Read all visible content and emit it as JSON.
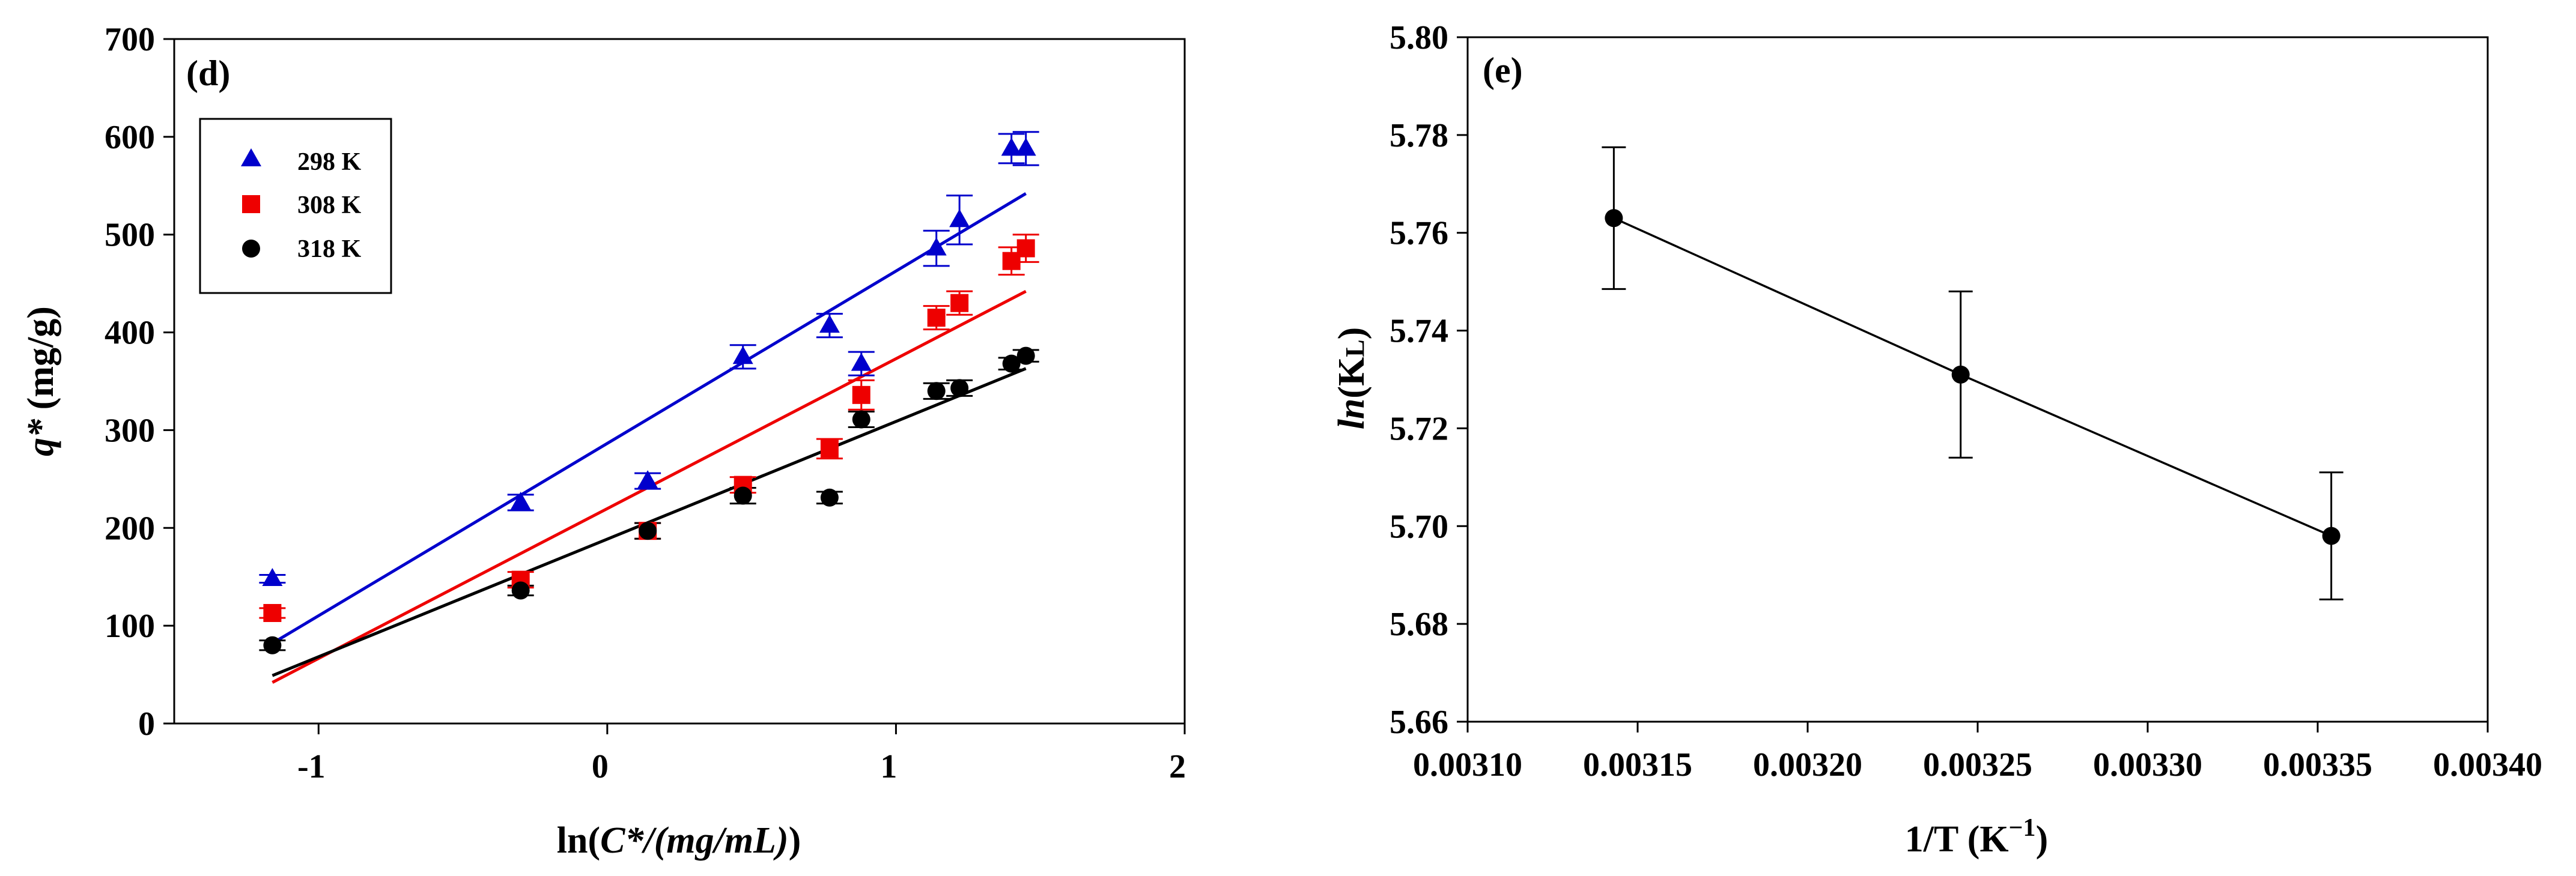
{
  "chart_data": [
    {
      "panel_label": "(d)",
      "type": "scatter",
      "xlabel_prefix": "ln(",
      "xlabel_italic": "C*/(mg/mL)",
      "xlabel_suffix": ")",
      "ylabel_italic": "q*",
      "ylabel_suffix": " (mg/g)",
      "xlim": [
        -1.5,
        2
      ],
      "ylim": [
        0,
        700
      ],
      "xticks": [
        -1,
        0,
        1,
        2
      ],
      "xtick_labels": [
        "-1",
        "0",
        "1",
        "2"
      ],
      "yticks": [
        0,
        100,
        200,
        300,
        400,
        500,
        600,
        700
      ],
      "ytick_labels": [
        "0",
        "100",
        "200",
        "300",
        "400",
        "500",
        "600",
        "700"
      ],
      "legend_position": "top-left",
      "series": [
        {
          "name": "298 K",
          "marker": "triangle",
          "color": "#0000cc",
          "x": [
            -1.16,
            -0.3,
            0.14,
            0.47,
            0.77,
            0.88,
            1.14,
            1.22,
            1.4,
            1.45
          ],
          "y": [
            148,
            226,
            248,
            375,
            407,
            368,
            486,
            515,
            588,
            588
          ],
          "err": [
            4,
            8,
            8,
            12,
            12,
            12,
            18,
            25,
            15,
            17
          ],
          "fit": {
            "x": [
              -1.16,
              1.45
            ],
            "y": [
              82,
              542
            ]
          }
        },
        {
          "name": "308 K",
          "marker": "square",
          "color": "#ee0000",
          "x": [
            -1.16,
            -0.3,
            0.14,
            0.47,
            0.77,
            0.88,
            1.14,
            1.22,
            1.4,
            1.45
          ],
          "y": [
            113,
            147,
            197,
            244,
            281,
            336,
            415,
            430,
            473,
            486
          ],
          "err": [
            5,
            8,
            8,
            8,
            10,
            15,
            12,
            12,
            14,
            14
          ],
          "fit": {
            "x": [
              -1.16,
              1.45
            ],
            "y": [
              42,
              442
            ]
          }
        },
        {
          "name": "318 K",
          "marker": "circle",
          "color": "#000000",
          "x": [
            -1.16,
            -0.3,
            0.14,
            0.47,
            0.77,
            0.88,
            1.14,
            1.22,
            1.4,
            1.45
          ],
          "y": [
            80,
            136,
            197,
            233,
            231,
            311,
            340,
            343,
            368,
            376
          ],
          "err": [
            5,
            5,
            8,
            8,
            6,
            8,
            8,
            8,
            6,
            6
          ],
          "fit": {
            "x": [
              -1.16,
              1.45
            ],
            "y": [
              49,
              363
            ]
          }
        }
      ]
    },
    {
      "panel_label": "(e)",
      "type": "line",
      "xlabel": "1/T (K",
      "xlabel_sup": "−1",
      "xlabel_suffix": ")",
      "ylabel_italic": "ln",
      "ylabel_suffix": "(K",
      "ylabel_sub": "L",
      "ylabel_close": ")",
      "xlim": [
        0.0031,
        0.0034
      ],
      "ylim": [
        5.66,
        5.8
      ],
      "xticks": [
        0.0031,
        0.00315,
        0.0032,
        0.00325,
        0.0033,
        0.00335,
        0.0034
      ],
      "xtick_labels": [
        "0.00310",
        "0.00315",
        "0.00320",
        "0.00325",
        "0.00330",
        "0.00335",
        "0.00340"
      ],
      "yticks": [
        5.66,
        5.68,
        5.7,
        5.72,
        5.74,
        5.76,
        5.78,
        5.8
      ],
      "ytick_labels": [
        "5.66",
        "5.68",
        "5.70",
        "5.72",
        "5.74",
        "5.76",
        "5.78",
        "5.80"
      ],
      "series": [
        {
          "name": "ln(KL)",
          "marker": "circle",
          "color": "#000000",
          "x": [
            0.003143,
            0.003245,
            0.003354
          ],
          "y": [
            5.763,
            5.731,
            5.698
          ],
          "err": [
            0.0145,
            0.017,
            0.013
          ]
        }
      ]
    }
  ]
}
